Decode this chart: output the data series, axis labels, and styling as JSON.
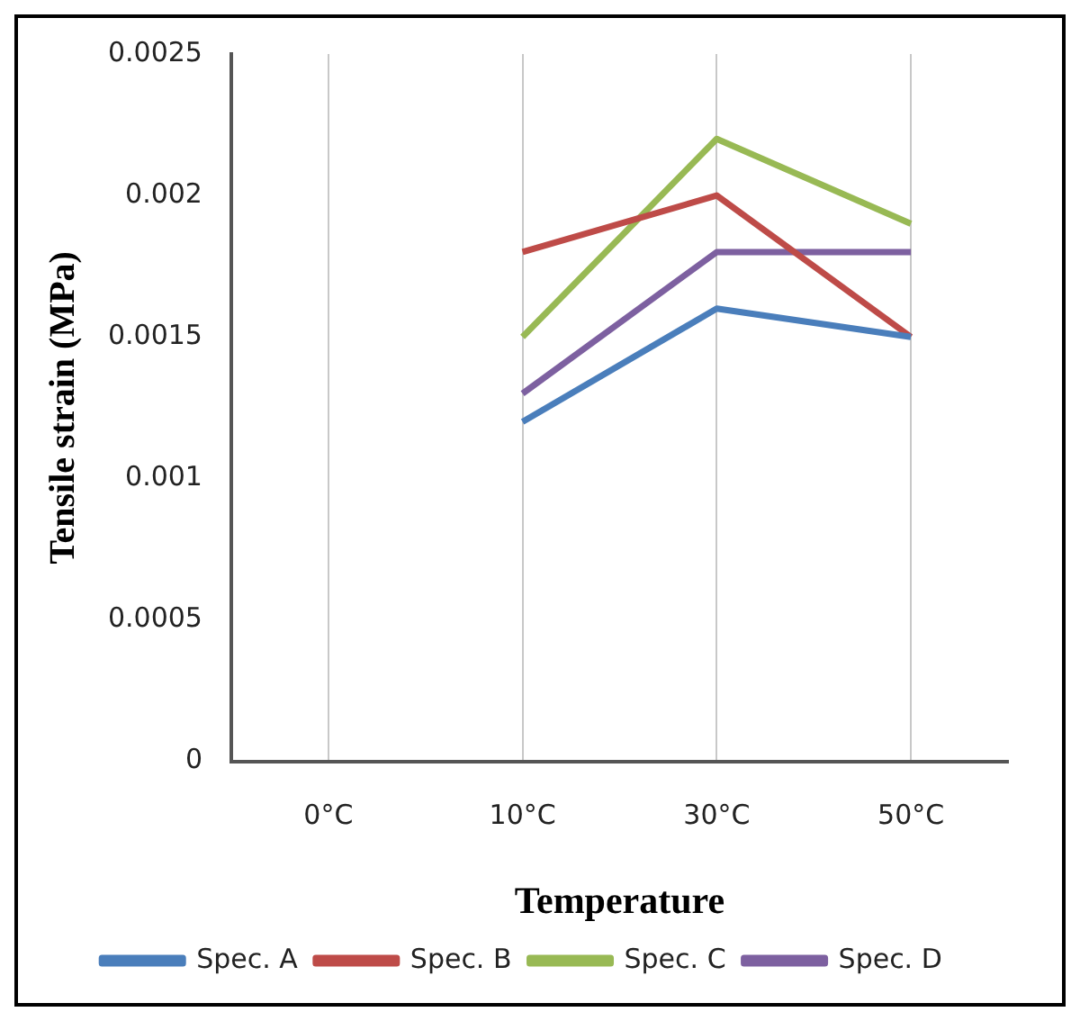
{
  "chart_data": {
    "type": "line",
    "xlabel": "Temperature",
    "ylabel": "Tensile strain (MPa)",
    "categories": [
      "0°C",
      "10°C",
      "30°C",
      "50°C"
    ],
    "series": [
      {
        "name": "Spec. A",
        "color": "#4a7ebb",
        "values": [
          null,
          0.0012,
          0.0016,
          0.0015
        ]
      },
      {
        "name": "Spec. B",
        "color": "#be4b48",
        "values": [
          null,
          0.0018,
          0.002,
          0.0015
        ]
      },
      {
        "name": "Spec. C",
        "color": "#98b954",
        "values": [
          null,
          0.0015,
          0.0022,
          0.0019
        ]
      },
      {
        "name": "Spec. D",
        "color": "#7d60a0",
        "values": [
          null,
          0.0013,
          0.0018,
          0.0018
        ]
      }
    ],
    "ylim": [
      0,
      0.0025
    ],
    "yticks": [
      0,
      0.0005,
      0.001,
      0.0015,
      0.002,
      0.0025
    ],
    "grid": "x",
    "legend": "bottom",
    "marker": "none",
    "line_style": "solid"
  }
}
